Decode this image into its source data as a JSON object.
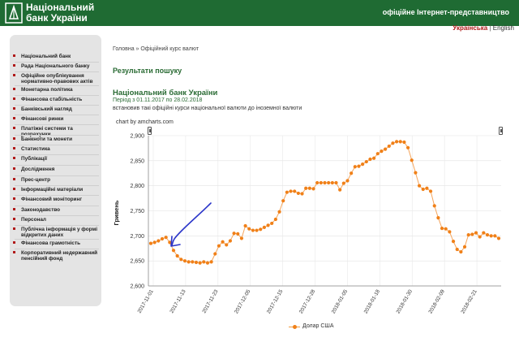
{
  "header": {
    "logo_line1": "Національний",
    "logo_line2": "банк України",
    "tagline": "офіційне Інтернет-представництво"
  },
  "lang": {
    "active": "Українська",
    "separator": " | ",
    "other": "English"
  },
  "sidebar": {
    "items": [
      {
        "label": "Національний банк"
      },
      {
        "label": "Рада Національного банку"
      },
      {
        "label": "Офіційне опублікування нормативно-правових актів"
      },
      {
        "label": "Монетарна політика"
      },
      {
        "label": "Фінансова стабільність"
      },
      {
        "label": "Банківський нагляд"
      },
      {
        "label": "Фінансові ринки"
      },
      {
        "label": "Платіжні системи та розрахунки"
      },
      {
        "label": "Банкноти та монети"
      },
      {
        "label": "Статистика"
      },
      {
        "label": "Публікації"
      },
      {
        "label": "Дослідження"
      },
      {
        "label": "Прес-центр"
      },
      {
        "label": "Інформаційні матеріали"
      },
      {
        "label": "Фінансовий моніторинг"
      },
      {
        "label": "Законодавство"
      },
      {
        "label": "Персонал"
      },
      {
        "label": "Публічна інформація у формі відкритих даних"
      },
      {
        "label": "Фінансова грамотність"
      },
      {
        "label": "Корпоративний недержавний пенсійний фонд"
      }
    ]
  },
  "breadcrumb": "Головна » Офіційний курс валют",
  "results_title": "Результати пошуку",
  "bank_title": "Національний банк України",
  "period": "Період з 01.11.2017 по 28.02.2018",
  "description": "встановив такі офіційні курси національної валюти до іноземної валюти",
  "credit": "chart by amcharts.com",
  "colors": {
    "header_green": "#1f6b33",
    "title_green": "#2a6b34",
    "series_orange": "#f08018",
    "annotation_blue": "#2b35c9",
    "bullet_red": "#b01a1a"
  },
  "chart_data": {
    "type": "line",
    "ylabel": "Гривень",
    "ylim": [
      2600,
      2900
    ],
    "yticks": [
      "2,600",
      "2,650",
      "2,700",
      "2,750",
      "2,800",
      "2,850",
      "2,900"
    ],
    "xticks": [
      "2017-11-01",
      "2017-11-13",
      "2017-11-23",
      "2017-12-05",
      "2017-12-15",
      "2017-12-28",
      "2018-01-05",
      "2018-01-18",
      "2018-01-30",
      "2018-02-09",
      "2018-02-21"
    ],
    "series": [
      {
        "name": "Долар США",
        "values": [
          2685,
          2687,
          2690,
          2694,
          2697,
          2687,
          2671,
          2660,
          2653,
          2650,
          2648,
          2648,
          2647,
          2646,
          2648,
          2646,
          2648,
          2664,
          2680,
          2688,
          2682,
          2690,
          2705,
          2704,
          2695,
          2720,
          2714,
          2711,
          2711,
          2713,
          2717,
          2721,
          2725,
          2733,
          2748,
          2770,
          2787,
          2789,
          2789,
          2785,
          2784,
          2795,
          2795,
          2794,
          2806,
          2806,
          2806,
          2806,
          2806,
          2806,
          2792,
          2805,
          2810,
          2825,
          2838,
          2839,
          2843,
          2848,
          2853,
          2855,
          2864,
          2869,
          2873,
          2879,
          2885,
          2888,
          2888,
          2887,
          2876,
          2851,
          2826,
          2800,
          2793,
          2795,
          2789,
          2760,
          2736,
          2715,
          2714,
          2708,
          2689,
          2673,
          2668,
          2678,
          2702,
          2703,
          2706,
          2698,
          2706,
          2702,
          2700,
          2700,
          2695
        ]
      }
    ],
    "legend": "bottom-center",
    "annotation": "hand-drawn blue arrow pointing to the November dip"
  }
}
